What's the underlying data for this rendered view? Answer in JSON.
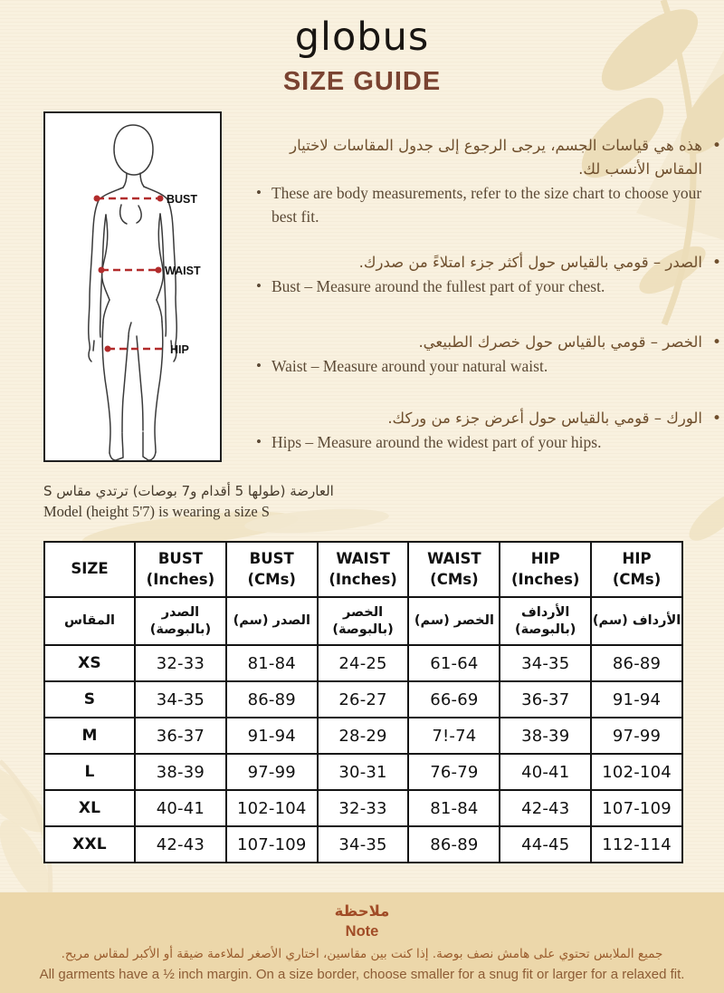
{
  "colors": {
    "background": "#f9f1df",
    "title_accent": "#7a4331",
    "arabic_text": "#6f4f2d",
    "english_text": "#5c4a36",
    "measure_line_red": "#b22c2c",
    "table_border": "#141414",
    "footer_band": "#ecd7aa",
    "footer_accent": "#a14c27",
    "leaf_decor": "#ecddb9"
  },
  "header": {
    "brand": "globus",
    "title": "SIZE GUIDE"
  },
  "diagram": {
    "bust_label": "BUST",
    "waist_label": "WAIST",
    "hip_label": "HIP"
  },
  "instructions": [
    {
      "ar": "هذه هي قياسات الجسم، يرجى الرجوع إلى جدول المقاسات لاختيار المقاس الأنسب لك.",
      "en": "These are body measurements, refer to the size chart to choose your best fit."
    },
    {
      "ar": "الصدر – قومي بالقياس حول أكثر جزء امتلاءً من صدرك.",
      "en": "Bust – Measure around the fullest part of your chest."
    },
    {
      "ar": "الخصر – قومي بالقياس حول خصرك الطبيعي.",
      "en": "Waist – Measure around your natural waist."
    },
    {
      "ar": "الورك – قومي بالقياس حول أعرض جزء من وركك.",
      "en": "Hips – Measure around the widest part of your hips."
    }
  ],
  "model_note": {
    "ar": "العارضة (طولها 5 أقدام و7 بوصات) ترتدي مقاس S",
    "en": "Model (height 5'7) is wearing a size S"
  },
  "size_table": {
    "headers_en": [
      "SIZE",
      "BUST\n(Inches)",
      "BUST\n(CMs)",
      "WAIST\n(Inches)",
      "WAIST\n(CMs)",
      "HIP\n(Inches)",
      "HIP\n(CMs)"
    ],
    "headers_ar": [
      "المقاس",
      "الصدر\n(بالبوصة)",
      "الصدر (سم)",
      "الخصر\n(بالبوصة)",
      "الخصر (سم)",
      "الأرداف\n(بالبوصة)",
      "الأرداف (سم)"
    ],
    "rows": [
      [
        "XS",
        "32-33",
        "81-84",
        "24-25",
        "61-64",
        "34-35",
        "86-89"
      ],
      [
        "S",
        "34-35",
        "86-89",
        "26-27",
        "66-69",
        "36-37",
        "91-94"
      ],
      [
        "M",
        "36-37",
        "91-94",
        "28-29",
        "7!-74",
        "38-39",
        "97-99"
      ],
      [
        "L",
        "38-39",
        "97-99",
        "30-31",
        "76-79",
        "40-41",
        "102-104"
      ],
      [
        "XL",
        "40-41",
        "102-104",
        "32-33",
        "81-84",
        "42-43",
        "107-109"
      ],
      [
        "XXL",
        "42-43",
        "107-109",
        "34-35",
        "86-89",
        "44-45",
        "112-114"
      ]
    ]
  },
  "footer": {
    "heading_ar": "ملاحظة",
    "heading_en": "Note",
    "body_ar": "جميع الملابس تحتوي على هامش نصف بوصة. إذا كنت بين مقاسين، اختاري الأصغر لملاءمة ضيقة أو الأكبر لمقاس مريح.",
    "body_en": "All garments have a ½ inch margin. On a size border, choose smaller for a snug fit or larger for a relaxed fit."
  }
}
